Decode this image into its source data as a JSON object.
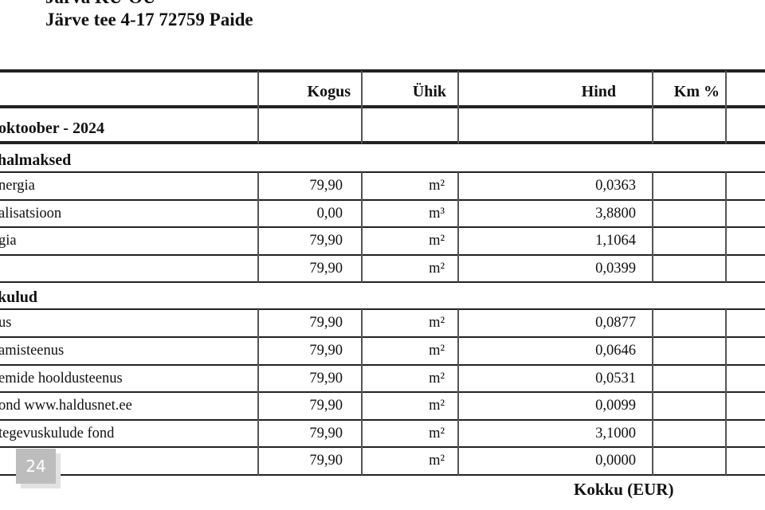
{
  "address": {
    "line1_partial": "Järva KÜ-OÜ",
    "line2": "Järve tee 4-17 72759  Paide"
  },
  "table": {
    "headers": {
      "kogus": "Kogus",
      "uhik": "Ühik",
      "hind": "Hind",
      "km": "Km %"
    },
    "period": "oktoober - 2024",
    "sections": [
      {
        "title": "halmaksed",
        "rows": [
          {
            "name": "nergia",
            "kogus": "79,90",
            "uhik": "m²",
            "hind": "0,0363"
          },
          {
            "name": "alisatsioon",
            "kogus": "0,00",
            "uhik": "m³",
            "hind": "3,8800"
          },
          {
            "name": "gia",
            "kogus": "79,90",
            "uhik": "m²",
            "hind": "1,1064"
          },
          {
            "name": "",
            "kogus": "79,90",
            "uhik": "m²",
            "hind": "0,0399"
          }
        ]
      },
      {
        "title": "kulud",
        "rows": [
          {
            "name": "us",
            "kogus": "79,90",
            "uhik": "m²",
            "hind": "0,0877"
          },
          {
            "name": "amisteenus",
            "kogus": "79,90",
            "uhik": "m²",
            "hind": "0,0646"
          },
          {
            "name": "emide hooldusteenus",
            "kogus": "79,90",
            "uhik": "m²",
            "hind": "0,0531"
          },
          {
            "name": "ond www.haldusnet.ee",
            "kogus": "79,90",
            "uhik": "m²",
            "hind": "0,0099"
          },
          {
            "name": " tegevuskulude fond",
            "kogus": "79,90",
            "uhik": "m²",
            "hind": "3,1000"
          },
          {
            "name": "",
            "kogus": "79,90",
            "uhik": "m²",
            "hind": "0,0000"
          }
        ]
      }
    ],
    "total_label": "Kokku (EUR)"
  },
  "page_badge": "24"
}
